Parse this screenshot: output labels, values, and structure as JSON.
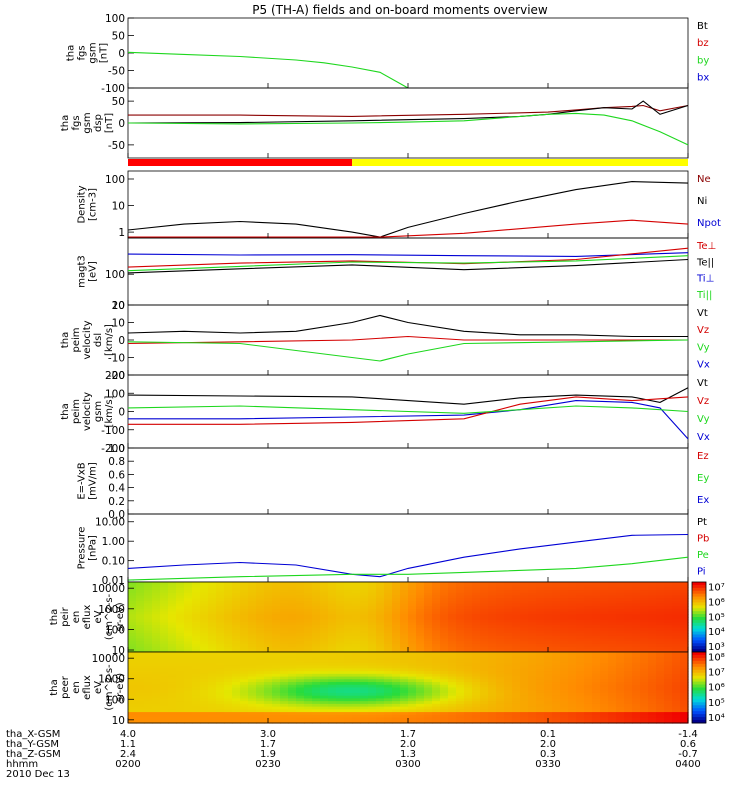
{
  "title": "P5 (TH-A) fields and on-board moments overview",
  "colors": {
    "black": "#000000",
    "red": "#d40000",
    "green": "#1ed71e",
    "blue": "#0000d4",
    "bar_red": "#ff0000",
    "bar_yellow": "#ffff00",
    "dark_red": "#8b0000"
  },
  "chart_data": [
    {
      "type": "line",
      "ylabel": [
        "tha",
        "fgs",
        "gsm",
        "[nT]"
      ],
      "ticks": [
        "100",
        "50",
        "0",
        "-50",
        "-100"
      ],
      "tick_values": [
        100,
        50,
        0,
        -50,
        -100
      ],
      "ylim": [
        -100,
        100
      ],
      "legend": [
        {
          "name": "Bt",
          "color": "#000000"
        },
        {
          "name": "bz",
          "color": "#d40000"
        },
        {
          "name": "by",
          "color": "#1ed71e"
        },
        {
          "name": "bx",
          "color": "#0000d4"
        }
      ],
      "series": [
        {
          "name": "by",
          "color": "#1ed71e",
          "x": [
            0.0,
            0.1,
            0.2,
            0.3,
            0.35,
            0.4,
            0.45,
            0.5
          ],
          "y": [
            2,
            -4,
            -10,
            -20,
            -28,
            -40,
            -55,
            -100
          ]
        }
      ]
    },
    {
      "type": "line",
      "ylabel": [
        "tha",
        "fgs",
        "gsm",
        "dsp",
        "[nT]"
      ],
      "ticks": [
        "50",
        "0",
        "-50"
      ],
      "tick_values": [
        50,
        0,
        -50
      ],
      "ylim": [
        -80,
        80
      ],
      "legend": [],
      "series": [
        {
          "name": "bz",
          "color": "#8b0000",
          "x": [
            0.0,
            0.2,
            0.4,
            0.6,
            0.75,
            0.8,
            0.85,
            0.9,
            0.92,
            0.95,
            1.0
          ],
          "y": [
            18,
            18,
            15,
            20,
            25,
            30,
            35,
            38,
            40,
            28,
            40
          ]
        },
        {
          "name": "Bt",
          "color": "#000000",
          "x": [
            0.0,
            0.2,
            0.4,
            0.6,
            0.7,
            0.75,
            0.8,
            0.85,
            0.9,
            0.92,
            0.95,
            1.0
          ],
          "y": [
            0,
            1,
            5,
            10,
            15,
            20,
            28,
            35,
            32,
            50,
            20,
            40
          ]
        },
        {
          "name": "by",
          "color": "#1ed71e",
          "x": [
            0.0,
            0.2,
            0.4,
            0.5,
            0.6,
            0.7,
            0.75,
            0.8,
            0.85,
            0.9,
            0.95,
            1.0
          ],
          "y": [
            0,
            -2,
            0,
            2,
            5,
            15,
            20,
            22,
            18,
            5,
            -20,
            -50
          ]
        }
      ]
    },
    {
      "type": "line",
      "ylabel": [
        "Density",
        "[cm-3]"
      ],
      "log": true,
      "ticks": [
        "100",
        "10",
        "1"
      ],
      "tick_values": [
        100,
        10,
        1
      ],
      "ylim": [
        0.6,
        200
      ],
      "legend": [
        {
          "name": "Ne",
          "color": "#8b0000"
        },
        {
          "name": "Ni",
          "color": "#000000"
        },
        {
          "name": "Npot",
          "color": "#0000d4"
        }
      ],
      "series": [
        {
          "name": "Ni",
          "color": "#000000",
          "x": [
            0.0,
            0.1,
            0.2,
            0.3,
            0.4,
            0.45,
            0.5,
            0.6,
            0.7,
            0.8,
            0.9,
            1.0
          ],
          "y": [
            1.2,
            2.0,
            2.5,
            2.0,
            1.0,
            0.65,
            1.5,
            5,
            15,
            40,
            80,
            70
          ]
        },
        {
          "name": "Ne",
          "color": "#d40000",
          "x": [
            0.0,
            0.3,
            0.45,
            0.6,
            0.8,
            0.9,
            1.0
          ],
          "y": [
            0.65,
            0.65,
            0.65,
            0.9,
            2.0,
            2.8,
            2.0
          ]
        }
      ]
    },
    {
      "type": "line",
      "ylabel": [
        "magt3",
        "[eV]"
      ],
      "log": true,
      "ticks": [
        "100",
        "10"
      ],
      "tick_values": [
        100,
        10
      ],
      "ylim": [
        10,
        1500
      ],
      "legend": [
        {
          "name": "Te⊥",
          "color": "#d40000"
        },
        {
          "name": "Te||",
          "color": "#000000"
        },
        {
          "name": "Ti⊥",
          "color": "#0000d4"
        },
        {
          "name": "Ti||",
          "color": "#1ed71e"
        }
      ],
      "series": [
        {
          "name": "Ti⊥",
          "color": "#0000d4",
          "x": [
            0.0,
            0.2,
            0.4,
            0.6,
            0.8,
            1.0
          ],
          "y": [
            450,
            420,
            430,
            400,
            380,
            500
          ]
        },
        {
          "name": "Te⊥",
          "color": "#d40000",
          "x": [
            0.0,
            0.2,
            0.4,
            0.6,
            0.8,
            1.0
          ],
          "y": [
            170,
            230,
            270,
            220,
            300,
            700
          ]
        },
        {
          "name": "Ti||",
          "color": "#1ed71e",
          "x": [
            0.0,
            0.2,
            0.4,
            0.6,
            0.8,
            1.0
          ],
          "y": [
            130,
            180,
            250,
            230,
            270,
            400
          ]
        },
        {
          "name": "Te||",
          "color": "#000000",
          "x": [
            0.0,
            0.2,
            0.4,
            0.6,
            0.8,
            1.0
          ],
          "y": [
            110,
            150,
            200,
            140,
            190,
            300
          ]
        }
      ]
    },
    {
      "type": "line",
      "ylabel": [
        "tha",
        "peim",
        "velocity",
        "dsl",
        "[km/s]"
      ],
      "ticks": [
        "20",
        "10",
        "0",
        "-10",
        "-20"
      ],
      "tick_values": [
        20,
        10,
        0,
        -10,
        -20
      ],
      "ylim": [
        -20,
        20
      ],
      "legend": [
        {
          "name": "Vt",
          "color": "#000000"
        },
        {
          "name": "Vz",
          "color": "#d40000"
        },
        {
          "name": "Vy",
          "color": "#1ed71e"
        },
        {
          "name": "Vx",
          "color": "#0000d4"
        }
      ],
      "series": [
        {
          "name": "Vt",
          "color": "#000000",
          "x": [
            0.0,
            0.1,
            0.2,
            0.3,
            0.4,
            0.45,
            0.5,
            0.6,
            0.7,
            0.8,
            0.9,
            1.0
          ],
          "y": [
            4,
            5,
            4,
            5,
            10,
            14,
            10,
            5,
            3,
            3,
            2,
            2
          ]
        },
        {
          "name": "Vz",
          "color": "#d40000",
          "x": [
            0.0,
            0.2,
            0.4,
            0.5,
            0.6,
            0.8,
            1.0
          ],
          "y": [
            -2,
            -1,
            0,
            2,
            0,
            0,
            0
          ]
        },
        {
          "name": "Vy",
          "color": "#1ed71e",
          "x": [
            0.0,
            0.2,
            0.4,
            0.45,
            0.5,
            0.6,
            0.8,
            1.0
          ],
          "y": [
            -1,
            -2,
            -10,
            -12,
            -8,
            -2,
            -1,
            0
          ]
        }
      ]
    },
    {
      "type": "line",
      "ylabel": [
        "tha",
        "peim",
        "velocity",
        "gsm",
        "[km/s]"
      ],
      "ticks": [
        "200",
        "100",
        "0",
        "-100",
        "-200"
      ],
      "tick_values": [
        200,
        100,
        0,
        -100,
        -200
      ],
      "ylim": [
        -200,
        200
      ],
      "legend": [
        {
          "name": "Vt",
          "color": "#000000"
        },
        {
          "name": "Vz",
          "color": "#d40000"
        },
        {
          "name": "Vy",
          "color": "#1ed71e"
        },
        {
          "name": "Vx",
          "color": "#0000d4"
        }
      ],
      "series": [
        {
          "name": "Vt",
          "color": "#000000",
          "x": [
            0.0,
            0.2,
            0.4,
            0.6,
            0.7,
            0.8,
            0.9,
            0.95,
            1.0
          ],
          "y": [
            90,
            85,
            80,
            40,
            75,
            90,
            80,
            50,
            130
          ]
        },
        {
          "name": "Vx",
          "color": "#0000d4",
          "x": [
            0.0,
            0.2,
            0.4,
            0.6,
            0.7,
            0.8,
            0.9,
            0.95,
            1.0
          ],
          "y": [
            -40,
            -40,
            -30,
            -20,
            10,
            60,
            50,
            20,
            -150
          ]
        },
        {
          "name": "Vz",
          "color": "#d40000",
          "x": [
            0.0,
            0.2,
            0.4,
            0.6,
            0.7,
            0.8,
            0.9,
            1.0
          ],
          "y": [
            -70,
            -70,
            -60,
            -40,
            40,
            80,
            60,
            80
          ]
        },
        {
          "name": "Vy",
          "color": "#1ed71e",
          "x": [
            0.0,
            0.2,
            0.4,
            0.6,
            0.7,
            0.8,
            0.9,
            1.0
          ],
          "y": [
            20,
            30,
            10,
            -10,
            10,
            30,
            20,
            0
          ]
        }
      ]
    },
    {
      "type": "line",
      "ylabel": [
        "E=-VxB",
        "[mV/m]"
      ],
      "ticks": [
        "1.0",
        "0.8",
        "0.6",
        "0.4",
        "0.2",
        "0.0"
      ],
      "tick_values": [
        1.0,
        0.8,
        0.6,
        0.4,
        0.2,
        0.0
      ],
      "ylim": [
        0,
        1
      ],
      "legend": [
        {
          "name": "Ez",
          "color": "#d40000"
        },
        {
          "name": "Ey",
          "color": "#1ed71e"
        },
        {
          "name": "Ex",
          "color": "#0000d4"
        }
      ],
      "series": []
    },
    {
      "type": "line",
      "ylabel": [
        "Pressure",
        "[nPa]"
      ],
      "log": true,
      "ticks": [
        "10.00",
        "1.00",
        "0.10",
        "0.01"
      ],
      "tick_values": [
        10,
        1,
        0.1,
        0.01
      ],
      "ylim": [
        0.008,
        25
      ],
      "legend": [
        {
          "name": "Pt",
          "color": "#000000"
        },
        {
          "name": "Pb",
          "color": "#d40000"
        },
        {
          "name": "Pe",
          "color": "#1ed71e"
        },
        {
          "name": "Pi",
          "color": "#0000d4"
        }
      ],
      "series": [
        {
          "name": "Pi",
          "color": "#0000d4",
          "x": [
            0.0,
            0.1,
            0.2,
            0.3,
            0.4,
            0.45,
            0.5,
            0.6,
            0.7,
            0.8,
            0.9,
            1.0
          ],
          "y": [
            0.04,
            0.06,
            0.08,
            0.06,
            0.02,
            0.015,
            0.04,
            0.15,
            0.4,
            0.9,
            2.0,
            2.2
          ]
        },
        {
          "name": "Pe",
          "color": "#1ed71e",
          "x": [
            0.0,
            0.2,
            0.4,
            0.5,
            0.6,
            0.8,
            0.9,
            1.0
          ],
          "y": [
            0.01,
            0.015,
            0.02,
            0.02,
            0.025,
            0.04,
            0.07,
            0.15
          ]
        }
      ]
    },
    {
      "type": "heatmap",
      "ylabel": [
        "tha",
        "peir",
        "en",
        "eflux",
        "eV",
        "(cm^2-s-",
        "sr-eV)"
      ],
      "log": true,
      "ticks": [
        "10000",
        "1000",
        "100",
        "10"
      ],
      "tick_values": [
        10000,
        1000,
        100,
        10
      ],
      "ylim": [
        8,
        20000
      ],
      "colorbar": {
        "ticks": [
          "10⁷",
          "10⁶",
          "10⁵",
          "10⁴",
          "10³"
        ],
        "tick_values": [
          7,
          6,
          5,
          4,
          3
        ]
      }
    },
    {
      "type": "heatmap",
      "ylabel": [
        "tha",
        "peer",
        "en",
        "eflux",
        "eV",
        "(cm^2-s-",
        "sr-eV)"
      ],
      "log": true,
      "ticks": [
        "10000",
        "1000",
        "100",
        "10"
      ],
      "tick_values": [
        10000,
        1000,
        100,
        10
      ],
      "ylim": [
        7,
        20000
      ],
      "colorbar": {
        "ticks": [
          "10⁸",
          "10⁷",
          "10⁶",
          "10⁵",
          "10⁴"
        ],
        "tick_values": [
          8,
          7,
          6,
          5,
          4
        ]
      }
    }
  ],
  "ephemeris": {
    "rows": [
      {
        "label": "tha_X-GSM",
        "values": [
          "4.0",
          "3.0",
          "1.7",
          "0.1",
          "-1.4"
        ]
      },
      {
        "label": "tha_Y-GSM",
        "values": [
          "1.1",
          "1.7",
          "2.0",
          "2.0",
          "0.6"
        ]
      },
      {
        "label": "tha_Z-GSM",
        "values": [
          "2.4",
          "1.9",
          "1.3",
          "0.3",
          "-0.7"
        ]
      },
      {
        "label": "hhmm",
        "values": [
          "0200",
          "0230",
          "0300",
          "0330",
          "0400"
        ]
      }
    ],
    "date": "2010 Dec 13"
  },
  "status_bar_split": 0.4
}
